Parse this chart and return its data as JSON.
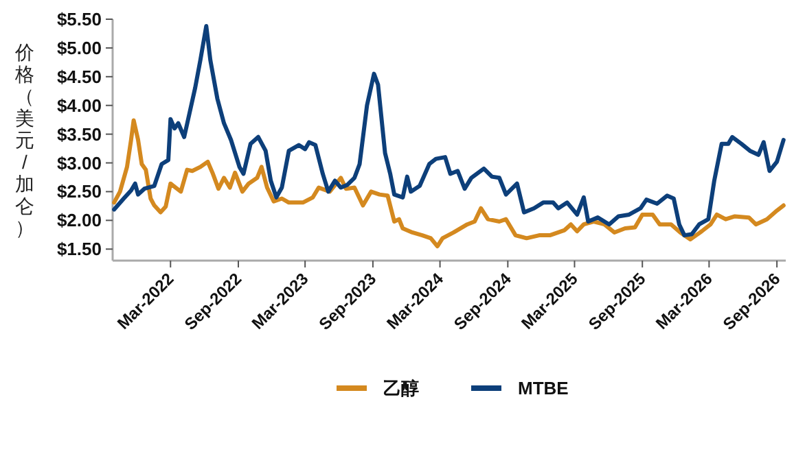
{
  "chart_data": {
    "type": "line",
    "ylabel": "价格（美元/加仑）",
    "legend": "bottom",
    "xlim": [
      "2021-09-25",
      "2026-09-25"
    ],
    "ylim": [
      1.3,
      5.5
    ],
    "xticks": [
      {
        "value": "2022-03-01",
        "label": "Mar-2022"
      },
      {
        "value": "2022-09-01",
        "label": "Sep-2022"
      },
      {
        "value": "2023-03-01",
        "label": "Mar-2023"
      },
      {
        "value": "2023-09-01",
        "label": "Sep-2023"
      },
      {
        "value": "2024-03-01",
        "label": "Mar-2024"
      },
      {
        "value": "2024-09-01",
        "label": "Sep-2024"
      },
      {
        "value": "2025-03-01",
        "label": "Mar-2025"
      },
      {
        "value": "2025-09-01",
        "label": "Sep-2025"
      },
      {
        "value": "2026-03-01",
        "label": "Mar-2026"
      },
      {
        "value": "2026-09-01",
        "label": "Sep-2026"
      }
    ],
    "yticks": [
      {
        "value": 1.5,
        "label": "$1.50"
      },
      {
        "value": 2,
        "label": "$2.00"
      },
      {
        "value": 2.5,
        "label": "$2.50"
      },
      {
        "value": 3,
        "label": "$3.00"
      },
      {
        "value": 3.5,
        "label": "$3.50"
      },
      {
        "value": 4,
        "label": "$4.00"
      },
      {
        "value": 4.5,
        "label": "$4.50"
      },
      {
        "value": 5,
        "label": "$5.00"
      },
      {
        "value": 5.5,
        "label": "$5.50"
      }
    ],
    "series": [
      {
        "name": "乙醇",
        "color": "#d4891f",
        "x": [
          "2021-09-29",
          "2021-10-15",
          "2021-11-03",
          "2021-11-14",
          "2021-11-21",
          "2021-12-03",
          "2021-12-13",
          "2021-12-24",
          "2022-01-06",
          "2022-01-16",
          "2022-02-02",
          "2022-02-16",
          "2022-03-01",
          "2022-03-15",
          "2022-03-29",
          "2022-04-15",
          "2022-04-29",
          "2022-05-21",
          "2022-06-10",
          "2022-06-24",
          "2022-07-09",
          "2022-07-24",
          "2022-08-09",
          "2022-08-23",
          "2022-09-12",
          "2022-09-29",
          "2022-10-22",
          "2022-11-03",
          "2022-11-18",
          "2022-12-06",
          "2022-12-28",
          "2023-01-16",
          "2023-02-23",
          "2023-03-22",
          "2023-04-07",
          "2023-05-07",
          "2023-06-06",
          "2023-06-20",
          "2023-07-13",
          "2023-08-05",
          "2023-08-27",
          "2023-09-19",
          "2023-10-11",
          "2023-10-29",
          "2023-11-11",
          "2023-11-21",
          "2023-12-17",
          "2024-01-13",
          "2024-02-05",
          "2024-02-23",
          "2024-03-08",
          "2024-04-07",
          "2024-05-14",
          "2024-06-03",
          "2024-06-20",
          "2024-07-09",
          "2024-08-09",
          "2024-08-27",
          "2024-09-22",
          "2024-10-22",
          "2024-11-25",
          "2024-12-24",
          "2025-02-02",
          "2025-02-19",
          "2025-03-08",
          "2025-03-26",
          "2025-04-22",
          "2025-05-21",
          "2025-06-17",
          "2025-07-16",
          "2025-08-12",
          "2025-09-01",
          "2025-09-29",
          "2025-10-18",
          "2025-11-18",
          "2025-12-13",
          "2026-01-09",
          "2026-02-09",
          "2026-03-05",
          "2026-03-22",
          "2026-04-15",
          "2026-05-10",
          "2026-06-17",
          "2026-07-06",
          "2026-08-05",
          "2026-09-01",
          "2026-09-19"
        ],
        "values": [
          2.31,
          2.5,
          2.93,
          3.4,
          3.74,
          3.4,
          2.98,
          2.88,
          2.38,
          2.26,
          2.14,
          2.24,
          2.64,
          2.57,
          2.5,
          2.88,
          2.86,
          2.93,
          3.02,
          2.81,
          2.55,
          2.74,
          2.57,
          2.83,
          2.5,
          2.64,
          2.74,
          2.93,
          2.57,
          2.33,
          2.38,
          2.31,
          2.31,
          2.4,
          2.57,
          2.5,
          2.74,
          2.55,
          2.57,
          2.26,
          2.5,
          2.45,
          2.43,
          1.98,
          2.02,
          1.86,
          1.79,
          1.74,
          1.69,
          1.55,
          1.69,
          1.79,
          1.93,
          1.98,
          2.21,
          2.02,
          1.98,
          2.02,
          1.74,
          1.69,
          1.74,
          1.74,
          1.83,
          1.93,
          1.81,
          1.93,
          1.98,
          1.93,
          1.79,
          1.86,
          1.88,
          2.1,
          2.1,
          1.93,
          1.93,
          1.79,
          1.67,
          1.81,
          1.93,
          2.1,
          2.02,
          2.07,
          2.05,
          1.93,
          2.02,
          2.17,
          2.26
        ]
      },
      {
        "name": "MTBE",
        "color": "#0d3f7a",
        "x": [
          "2021-09-29",
          "2021-10-25",
          "2021-11-14",
          "2021-11-25",
          "2021-12-03",
          "2021-12-20",
          "2022-01-16",
          "2022-02-05",
          "2022-02-23",
          "2022-03-01",
          "2022-03-12",
          "2022-03-22",
          "2022-04-07",
          "2022-04-22",
          "2022-05-07",
          "2022-05-21",
          "2022-06-06",
          "2022-06-17",
          "2022-07-06",
          "2022-07-24",
          "2022-08-12",
          "2022-09-04",
          "2022-09-15",
          "2022-10-04",
          "2022-10-25",
          "2022-11-14",
          "2022-11-28",
          "2022-12-13",
          "2022-12-28",
          "2023-01-16",
          "2023-02-12",
          "2023-03-01",
          "2023-03-12",
          "2023-03-29",
          "2023-04-18",
          "2023-05-03",
          "2023-05-21",
          "2023-06-06",
          "2023-06-24",
          "2023-07-13",
          "2023-07-27",
          "2023-08-16",
          "2023-09-04",
          "2023-09-15",
          "2023-10-04",
          "2023-10-18",
          "2023-10-29",
          "2023-11-21",
          "2023-12-03",
          "2023-12-13",
          "2024-01-06",
          "2024-02-01",
          "2024-02-19",
          "2024-03-15",
          "2024-03-29",
          "2024-04-18",
          "2024-05-07",
          "2024-05-25",
          "2024-06-28",
          "2024-07-20",
          "2024-08-09",
          "2024-08-27",
          "2024-09-26",
          "2024-10-15",
          "2024-11-11",
          "2024-12-06",
          "2025-01-02",
          "2025-01-16",
          "2025-02-09",
          "2025-03-08",
          "2025-03-26",
          "2025-04-07",
          "2025-05-03",
          "2025-06-03",
          "2025-06-28",
          "2025-07-27",
          "2025-08-27",
          "2025-09-12",
          "2025-10-11",
          "2025-11-07",
          "2025-11-25",
          "2025-12-10",
          "2025-12-24",
          "2026-01-13",
          "2026-02-02",
          "2026-02-27",
          "2026-03-15",
          "2026-04-04",
          "2026-04-22",
          "2026-05-03",
          "2026-05-28",
          "2026-06-20",
          "2026-07-13",
          "2026-07-27",
          "2026-08-12",
          "2026-09-01",
          "2026-09-19"
        ],
        "values": [
          2.19,
          2.38,
          2.52,
          2.64,
          2.45,
          2.55,
          2.6,
          2.98,
          3.05,
          3.76,
          3.6,
          3.69,
          3.45,
          3.88,
          4.31,
          4.79,
          5.38,
          4.79,
          4.12,
          3.69,
          3.4,
          2.93,
          2.81,
          3.33,
          3.45,
          3.21,
          2.69,
          2.4,
          2.57,
          3.21,
          3.31,
          3.24,
          3.36,
          3.31,
          2.81,
          2.5,
          2.69,
          2.57,
          2.62,
          2.74,
          2.98,
          4.0,
          4.55,
          4.36,
          3.17,
          2.81,
          2.45,
          2.4,
          2.76,
          2.5,
          2.6,
          2.98,
          3.07,
          3.1,
          2.81,
          2.86,
          2.55,
          2.74,
          2.9,
          2.76,
          2.74,
          2.45,
          2.64,
          2.14,
          2.21,
          2.31,
          2.31,
          2.21,
          2.31,
          2.1,
          2.4,
          1.98,
          2.05,
          1.93,
          2.07,
          2.1,
          2.21,
          2.36,
          2.29,
          2.43,
          2.38,
          1.93,
          1.74,
          1.76,
          1.93,
          2.02,
          2.69,
          3.33,
          3.33,
          3.45,
          3.33,
          3.21,
          3.14,
          3.36,
          2.86,
          3.02,
          3.4
        ]
      }
    ]
  }
}
